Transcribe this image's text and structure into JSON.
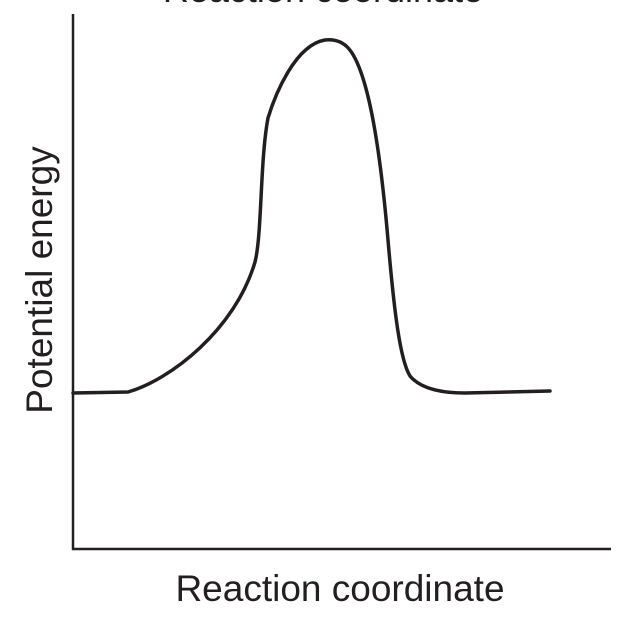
{
  "top_caption": "Reaction coordinate",
  "y_axis_label": "Potential energy",
  "x_axis_label": "Reaction coordinate"
}
